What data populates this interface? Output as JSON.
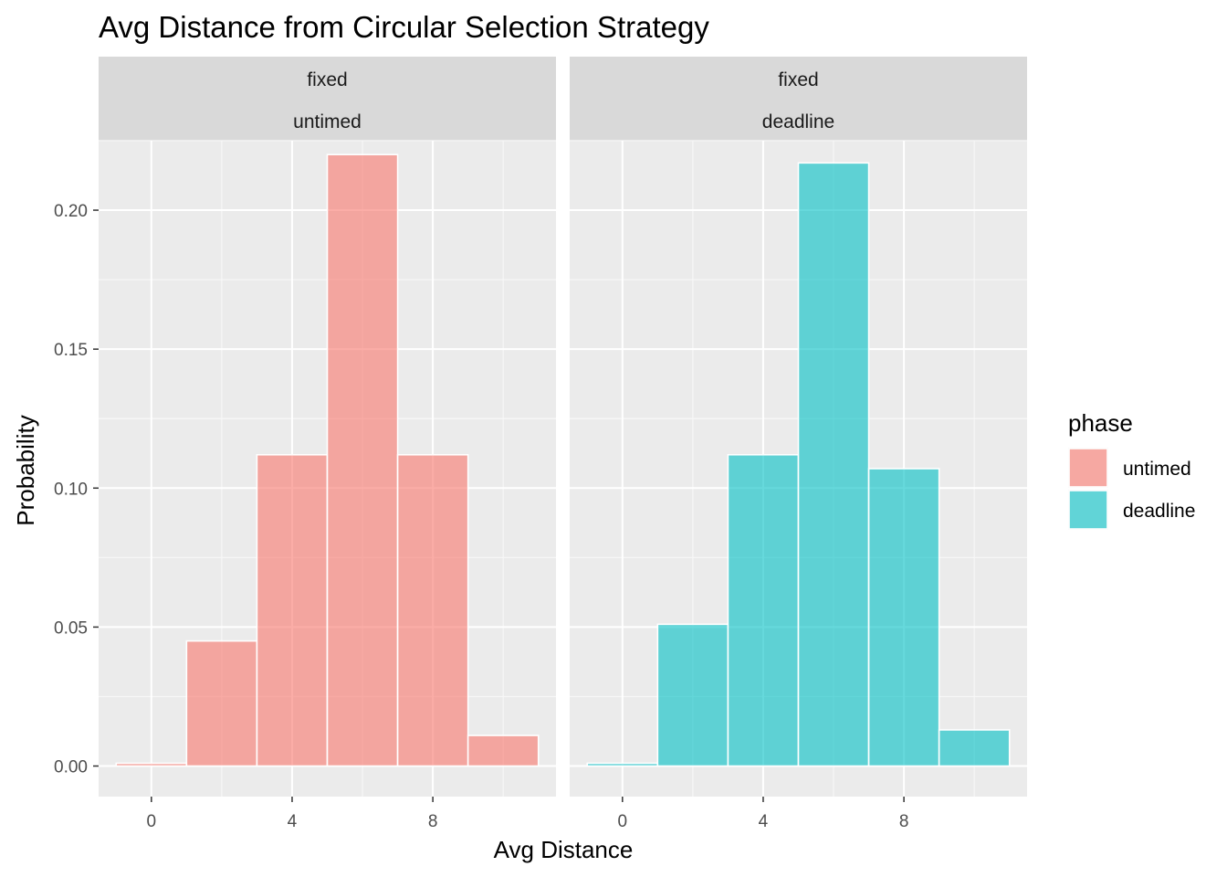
{
  "chart_data": {
    "type": "bar",
    "title": "Avg Distance from Circular Selection Strategy",
    "xlabel": "Avg Distance",
    "ylabel": "Probability",
    "xlim": [
      -1.5,
      11.5
    ],
    "ylim": [
      -0.011,
      0.225
    ],
    "x_ticks": [
      0,
      4,
      8
    ],
    "x_tick_labels": [
      "0",
      "4",
      "8"
    ],
    "y_ticks": [
      0,
      0.05,
      0.1,
      0.15,
      0.2
    ],
    "y_tick_labels": [
      "0.00",
      "0.05",
      "0.10",
      "0.15",
      "0.20"
    ],
    "bin_width": 2,
    "grid": true,
    "legend": {
      "title": "phase",
      "position": "right",
      "entries": [
        {
          "label": "untimed",
          "color": "#F8766D"
        },
        {
          "label": "deadline",
          "color": "#00BFC4"
        }
      ]
    },
    "panels": [
      {
        "strip": [
          "fixed",
          "untimed"
        ],
        "series": "untimed",
        "color": "#F8766D",
        "bins": [
          {
            "center": 0,
            "value": 0.001
          },
          {
            "center": 2,
            "value": 0.045
          },
          {
            "center": 4,
            "value": 0.112
          },
          {
            "center": 6,
            "value": 0.22
          },
          {
            "center": 8,
            "value": 0.112
          },
          {
            "center": 10,
            "value": 0.011
          }
        ]
      },
      {
        "strip": [
          "fixed",
          "deadline"
        ],
        "series": "deadline",
        "color": "#00BFC4",
        "bins": [
          {
            "center": 0,
            "value": 0.001
          },
          {
            "center": 2,
            "value": 0.051
          },
          {
            "center": 4,
            "value": 0.112
          },
          {
            "center": 6,
            "value": 0.217
          },
          {
            "center": 8,
            "value": 0.107
          },
          {
            "center": 10,
            "value": 0.013
          }
        ]
      }
    ]
  }
}
